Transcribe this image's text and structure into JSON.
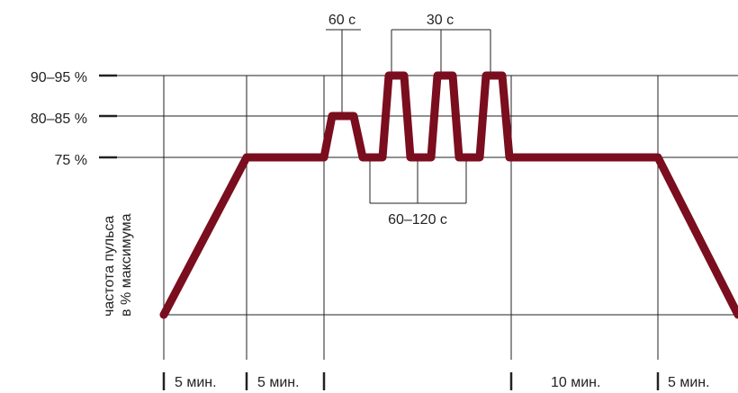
{
  "chart_data": {
    "type": "line",
    "ylabel_lines": [
      "частота пульса",
      "в % максимума"
    ],
    "y_levels": [
      "90–95 %",
      "80–85 %",
      "75 %"
    ],
    "annotations": {
      "top_single": "60 с",
      "top_group": "30 с",
      "bottom_group": "60–120 с"
    },
    "phase_labels": [
      "5 мин.",
      "5 мин.",
      "10 мин.",
      "5 мин."
    ],
    "profile": [
      {
        "level": "base",
        "note": "start"
      },
      {
        "level": "75 %"
      },
      {
        "level": "75 %"
      },
      {
        "level": "80–85 %"
      },
      {
        "level": "80–85 %"
      },
      {
        "level": "75 %"
      },
      {
        "level": "75 %"
      },
      {
        "level": "90–95 %"
      },
      {
        "level": "90–95 %"
      },
      {
        "level": "75 %"
      },
      {
        "level": "75 %"
      },
      {
        "level": "90–95 %"
      },
      {
        "level": "90–95 %"
      },
      {
        "level": "75 %"
      },
      {
        "level": "75 %"
      },
      {
        "level": "90–95 %"
      },
      {
        "level": "90–95 %"
      },
      {
        "level": "75 %"
      },
      {
        "level": "75 %"
      },
      {
        "level": "base",
        "note": "end"
      }
    ],
    "colors": {
      "line": "#7a0d1e",
      "grid": "#222222"
    },
    "grid": true,
    "legend": "none"
  }
}
